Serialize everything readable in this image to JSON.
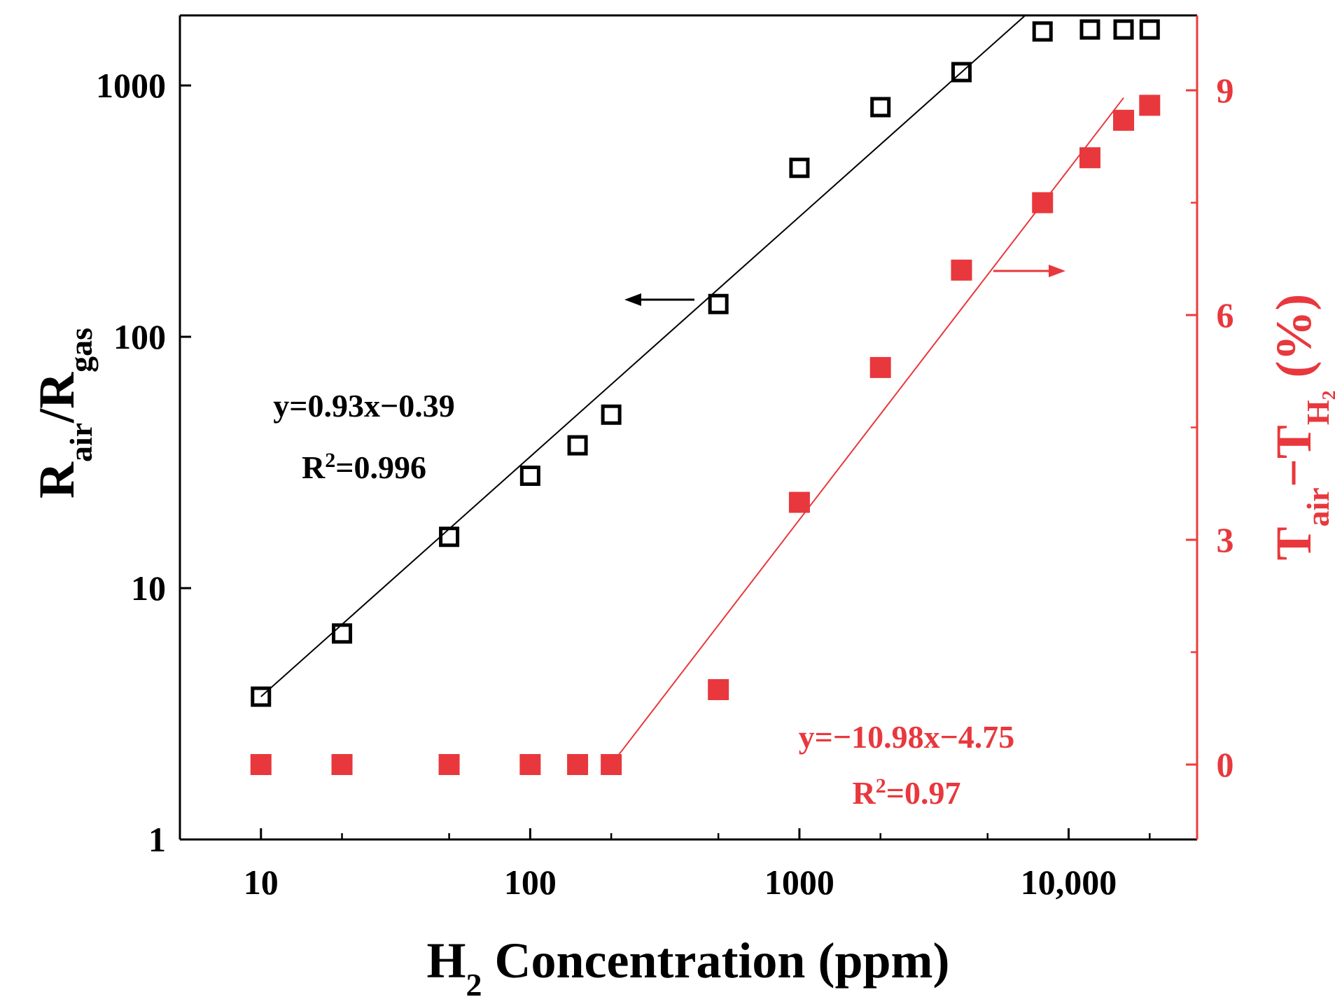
{
  "chart_data": {
    "type": "scatter",
    "xlabel": {
      "main": "H",
      "sub": "2",
      "rest": " Concentration (ppm)"
    },
    "ylabel_left": {
      "r1": "R",
      "s1": "air",
      "mid": "/R",
      "s2": "gas"
    },
    "ylabel_right": {
      "t1": "T",
      "s1": "air",
      "mid": "−T",
      "s2": "H₂",
      "rest": " (%)"
    },
    "x_scale": "log",
    "xlim": [
      5,
      30000
    ],
    "x_ticks": [
      10,
      100,
      1000,
      10000
    ],
    "x_tick_labels": [
      "10",
      "100",
      "1000",
      "10,000"
    ],
    "y_left_scale": "log",
    "y_left_lim": [
      1,
      1900
    ],
    "y_left_ticks": [
      1,
      10,
      100,
      1000
    ],
    "y_left_tick_labels": [
      "1",
      "10",
      "100",
      "1000"
    ],
    "y_right_lim": [
      -1.0,
      10.0
    ],
    "y_right_ticks": [
      0,
      3,
      6,
      9
    ],
    "y_right_tick_labels": [
      "0",
      "3",
      "6",
      "9"
    ],
    "colors": {
      "left": "#000000",
      "right": "#e8383d",
      "axis_right": "#ee3a3a"
    },
    "series": [
      {
        "name": "Rair/Rgas",
        "axis": "left",
        "marker": "open-square",
        "x": [
          10,
          20,
          50,
          100,
          150,
          200,
          500,
          1000,
          2000,
          4000,
          8000,
          12000,
          16000,
          20000
        ],
        "y": [
          3.7,
          6.6,
          16,
          28,
          37,
          49,
          135,
          470,
          820,
          1130,
          1640,
          1670,
          1670,
          1670
        ]
      },
      {
        "name": "Tair-TH2",
        "axis": "right",
        "marker": "filled-square",
        "x": [
          10,
          20,
          50,
          100,
          150,
          200,
          500,
          1000,
          2000,
          4000,
          8000,
          12000,
          16000,
          20000
        ],
        "y": [
          0,
          0,
          0,
          0,
          0,
          0,
          1.0,
          3.5,
          5.3,
          6.6,
          7.5,
          8.1,
          8.6,
          8.8
        ]
      }
    ],
    "fits": [
      {
        "axis": "left",
        "x_start": 10,
        "y_start": 3.7,
        "x_end": 6900,
        "y_end": 1900
      },
      {
        "axis": "right",
        "x_start": 200,
        "y_start": 0,
        "x_end": 16000,
        "y_end": 8.9
      }
    ],
    "annotations": {
      "left_fit_eq": "y=0.93x−0.39",
      "left_r2_prefix": "R",
      "left_r2_sup": "2",
      "left_r2_value": "=0.996",
      "right_fit_eq": "y=−10.98x−4.75",
      "right_r2_prefix": "R",
      "right_r2_sup": "2",
      "right_r2_value": "=0.97"
    }
  }
}
